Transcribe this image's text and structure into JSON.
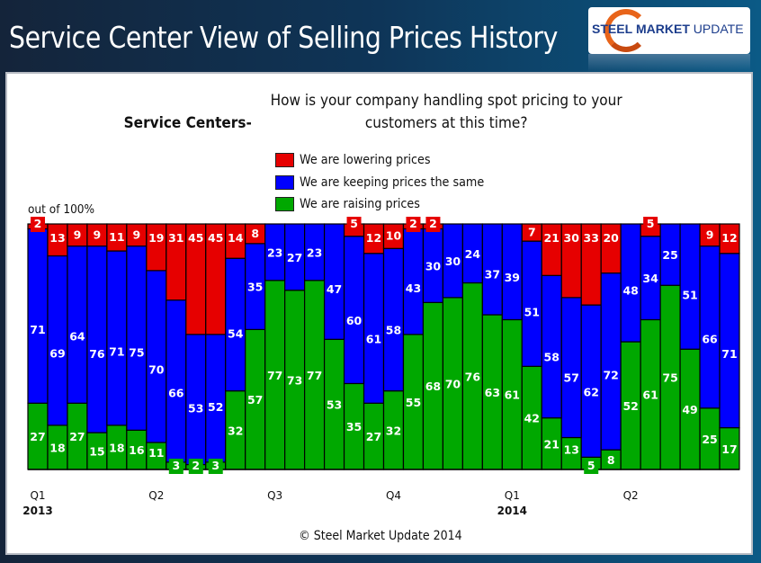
{
  "header": {
    "title": "Service Center View of Selling Prices History",
    "logo": {
      "part1": "STEEL",
      "part2": "MARKET",
      "part3": "UPDATE"
    }
  },
  "footer": {
    "copyright": "© Steel Market Update 2014"
  },
  "chart_data": {
    "type": "bar",
    "stacked": true,
    "title_bold": "Service Centers-",
    "title": "How is your company handling spot pricing to your customers at this time?",
    "ylabel": "out of 100%",
    "ylim": [
      0,
      100
    ],
    "legend_position": "top-center",
    "colors": {
      "lowering": "#e60000",
      "keeping": "#0000ff",
      "raising": "#00a800"
    },
    "series": [
      {
        "key": "raising",
        "name": "We are raising prices",
        "values": [
          27,
          18,
          27,
          15,
          18,
          16,
          11,
          3,
          2,
          3,
          32,
          57,
          77,
          73,
          77,
          53,
          35,
          27,
          32,
          55,
          68,
          70,
          76,
          63,
          61,
          42,
          21,
          13,
          5,
          8,
          52,
          61,
          75,
          49,
          25,
          17
        ]
      },
      {
        "key": "keeping",
        "name": "We are keeping prices the same",
        "values": [
          71,
          69,
          64,
          76,
          71,
          75,
          70,
          66,
          53,
          52,
          54,
          35,
          23,
          27,
          23,
          47,
          60,
          61,
          58,
          43,
          30,
          30,
          24,
          37,
          39,
          51,
          58,
          57,
          62,
          72,
          48,
          34,
          25,
          51,
          66,
          71
        ]
      },
      {
        "key": "lowering",
        "name": "We are lowering prices",
        "values": [
          2,
          13,
          9,
          9,
          11,
          9,
          19,
          31,
          45,
          45,
          14,
          8,
          0,
          0,
          0,
          0,
          5,
          12,
          10,
          2,
          2,
          0,
          0,
          0,
          0,
          7,
          21,
          30,
          33,
          20,
          0,
          5,
          0,
          0,
          9,
          12
        ]
      }
    ],
    "legend_order": [
      "lowering",
      "keeping",
      "raising"
    ],
    "x_ticks": [
      {
        "bar_index": 0,
        "quarter": "Q1",
        "year": "2013"
      },
      {
        "bar_index": 6,
        "quarter": "Q2",
        "year": ""
      },
      {
        "bar_index": 12,
        "quarter": "Q3",
        "year": ""
      },
      {
        "bar_index": 18,
        "quarter": "Q4",
        "year": ""
      },
      {
        "bar_index": 24,
        "quarter": "Q1",
        "year": "2014"
      },
      {
        "bar_index": 30,
        "quarter": "Q2",
        "year": ""
      }
    ]
  }
}
